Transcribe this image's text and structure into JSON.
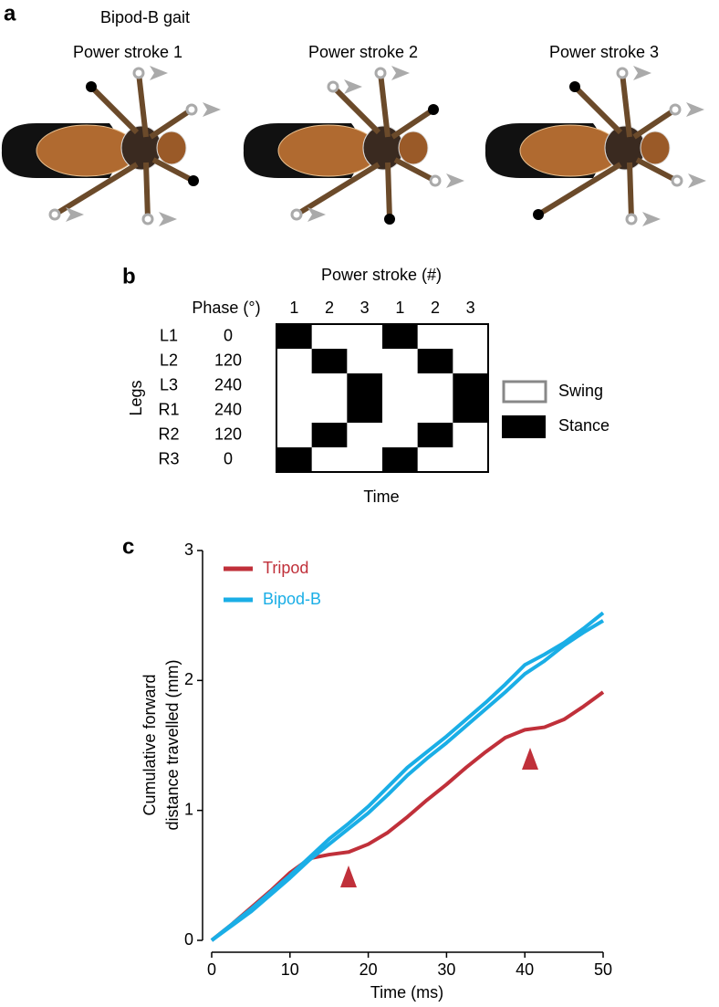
{
  "panel_a": {
    "label": "a",
    "title": "Bipod-B gait",
    "strokes": [
      "Power stroke 1",
      "Power stroke 2",
      "Power stroke 3"
    ]
  },
  "panel_b": {
    "label": "b",
    "title": "Power stroke (#)",
    "phase_header": "Phase (°)",
    "stroke_numbers": [
      "1",
      "2",
      "3",
      "1",
      "2",
      "3"
    ],
    "legs_label": "Legs",
    "rows": [
      {
        "leg": "L1",
        "phase": 0
      },
      {
        "leg": "L2",
        "phase": 120
      },
      {
        "leg": "L3",
        "phase": 240
      },
      {
        "leg": "R1",
        "phase": 240
      },
      {
        "leg": "R2",
        "phase": 120
      },
      {
        "leg": "R3",
        "phase": 0
      }
    ],
    "x_label": "Time",
    "legend": [
      "Swing",
      "Stance"
    ]
  },
  "chart_data": {
    "type": "line",
    "label": "c",
    "xlabel": "Time (ms)",
    "ylabel": [
      "Cumulative forward",
      "distance travelled (mm)"
    ],
    "x": [
      0,
      2.5,
      5,
      7.5,
      10,
      12.5,
      15,
      17.5,
      20,
      22.5,
      25,
      27.5,
      30,
      32.5,
      35,
      37.5,
      40,
      42.5,
      45,
      47.5,
      50
    ],
    "series": [
      {
        "name": "Tripod",
        "color": "#c0303a",
        "values": [
          0,
          0.12,
          0.25,
          0.38,
          0.52,
          0.63,
          0.66,
          0.68,
          0.74,
          0.83,
          0.95,
          1.08,
          1.2,
          1.33,
          1.45,
          1.56,
          1.62,
          1.64,
          1.7,
          1.8,
          1.91
        ]
      },
      {
        "name": "Bipod-B",
        "color": "#1aaee6",
        "lines": [
          [
            0,
            0.12,
            0.24,
            0.37,
            0.5,
            0.64,
            0.78,
            0.9,
            1.03,
            1.18,
            1.33,
            1.45,
            1.57,
            1.7,
            1.83,
            1.97,
            2.12,
            2.2,
            2.29,
            2.4,
            2.52
          ],
          [
            0,
            0.11,
            0.22,
            0.35,
            0.48,
            0.62,
            0.74,
            0.86,
            0.98,
            1.12,
            1.27,
            1.4,
            1.52,
            1.65,
            1.78,
            1.91,
            2.05,
            2.15,
            2.27,
            2.37,
            2.46
          ]
        ]
      }
    ],
    "xlim": [
      0,
      50
    ],
    "ylim": [
      0,
      3
    ],
    "xticks": [
      0,
      10,
      20,
      30,
      40,
      50
    ],
    "yticks": [
      0,
      1,
      2,
      3
    ]
  }
}
